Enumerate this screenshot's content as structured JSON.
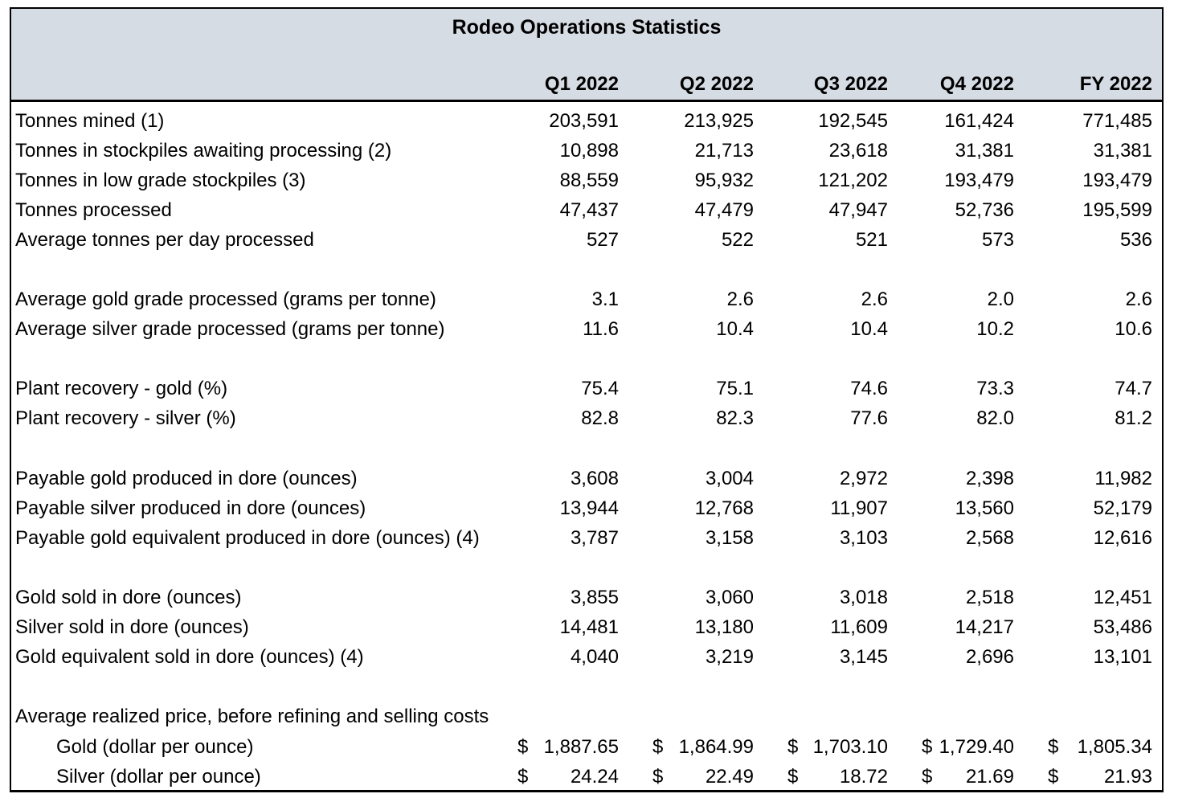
{
  "table": {
    "title": "Rodeo Operations Statistics",
    "header_bg": "#d6dce4",
    "border_color": "#000000",
    "currency_symbol": "$",
    "columns": [
      "Q1 2022",
      "Q2 2022",
      "Q3 2022",
      "Q4 2022",
      "FY 2022"
    ],
    "rows": [
      {
        "label": "Tonnes mined (1)",
        "values": [
          "203,591",
          "213,925",
          "192,545",
          "161,424",
          "771,485"
        ]
      },
      {
        "label": "Tonnes in stockpiles awaiting processing (2)",
        "values": [
          "10,898",
          "21,713",
          "23,618",
          "31,381",
          "31,381"
        ]
      },
      {
        "label": "Tonnes in low grade stockpiles (3)",
        "values": [
          "88,559",
          "95,932",
          "121,202",
          "193,479",
          "193,479"
        ]
      },
      {
        "label": "Tonnes processed",
        "values": [
          "47,437",
          "47,479",
          "47,947",
          "52,736",
          "195,599"
        ]
      },
      {
        "label": "Average tonnes per day processed",
        "values": [
          "527",
          "522",
          "521",
          "573",
          "536"
        ]
      },
      {
        "blank": true
      },
      {
        "label": "Average gold grade processed (grams per tonne)",
        "values": [
          "3.1",
          "2.6",
          "2.6",
          "2.0",
          "2.6"
        ]
      },
      {
        "label": "Average silver grade processed (grams per tonne)",
        "values": [
          "11.6",
          "10.4",
          "10.4",
          "10.2",
          "10.6"
        ]
      },
      {
        "blank": true
      },
      {
        "label": "Plant recovery - gold (%)",
        "values": [
          "75.4",
          "75.1",
          "74.6",
          "73.3",
          "74.7"
        ]
      },
      {
        "label": "Plant recovery - silver (%)",
        "values": [
          "82.8",
          "82.3",
          "77.6",
          "82.0",
          "81.2"
        ]
      },
      {
        "blank": true
      },
      {
        "label": "Payable gold produced in dore (ounces)",
        "values": [
          "3,608",
          "3,004",
          "2,972",
          "2,398",
          "11,982"
        ]
      },
      {
        "label": "Payable silver produced in dore (ounces)",
        "values": [
          "13,944",
          "12,768",
          "11,907",
          "13,560",
          "52,179"
        ]
      },
      {
        "label": "Payable gold equivalent produced in dore (ounces) (4)",
        "values": [
          "3,787",
          "3,158",
          "3,103",
          "2,568",
          "12,616"
        ]
      },
      {
        "blank": true
      },
      {
        "label": "Gold sold in dore (ounces)",
        "values": [
          "3,855",
          "3,060",
          "3,018",
          "2,518",
          "12,451"
        ]
      },
      {
        "label": "Silver sold in dore (ounces)",
        "values": [
          "14,481",
          "13,180",
          "11,609",
          "14,217",
          "53,486"
        ]
      },
      {
        "label": "Gold equivalent sold in dore (ounces) (4)",
        "values": [
          "4,040",
          "3,219",
          "3,145",
          "2,696",
          "13,101"
        ]
      },
      {
        "blank": true
      },
      {
        "label": "Average realized price, before refining and selling costs",
        "values": [
          "",
          "",
          "",
          "",
          ""
        ]
      },
      {
        "label": "Gold (dollar per ounce)",
        "indent": true,
        "currency": true,
        "values": [
          "1,887.65",
          "1,864.99",
          "1,703.10",
          "1,729.40",
          "1,805.34"
        ]
      },
      {
        "label": "Silver (dollar per ounce)",
        "indent": true,
        "currency": true,
        "values": [
          "24.24",
          "22.49",
          "18.72",
          "21.69",
          "21.93"
        ]
      }
    ]
  },
  "chart_data": {
    "type": "table",
    "title": "Rodeo Operations Statistics",
    "categories": [
      "Q1 2022",
      "Q2 2022",
      "Q3 2022",
      "Q4 2022",
      "FY 2022"
    ],
    "series": [
      {
        "name": "Tonnes mined (1)",
        "values": [
          203591,
          213925,
          192545,
          161424,
          771485
        ]
      },
      {
        "name": "Tonnes in stockpiles awaiting processing (2)",
        "values": [
          10898,
          21713,
          23618,
          31381,
          31381
        ]
      },
      {
        "name": "Tonnes in low grade stockpiles (3)",
        "values": [
          88559,
          95932,
          121202,
          193479,
          193479
        ]
      },
      {
        "name": "Tonnes processed",
        "values": [
          47437,
          47479,
          47947,
          52736,
          195599
        ]
      },
      {
        "name": "Average tonnes per day processed",
        "values": [
          527,
          522,
          521,
          573,
          536
        ]
      },
      {
        "name": "Average gold grade processed (grams per tonne)",
        "values": [
          3.1,
          2.6,
          2.6,
          2.0,
          2.6
        ]
      },
      {
        "name": "Average silver grade processed (grams per tonne)",
        "values": [
          11.6,
          10.4,
          10.4,
          10.2,
          10.6
        ]
      },
      {
        "name": "Plant recovery - gold (%)",
        "values": [
          75.4,
          75.1,
          74.6,
          73.3,
          74.7
        ]
      },
      {
        "name": "Plant recovery - silver (%)",
        "values": [
          82.8,
          82.3,
          77.6,
          82.0,
          81.2
        ]
      },
      {
        "name": "Payable gold produced in dore (ounces)",
        "values": [
          3608,
          3004,
          2972,
          2398,
          11982
        ]
      },
      {
        "name": "Payable silver produced in dore (ounces)",
        "values": [
          13944,
          12768,
          11907,
          13560,
          52179
        ]
      },
      {
        "name": "Payable gold equivalent produced in dore (ounces) (4)",
        "values": [
          3787,
          3158,
          3103,
          2568,
          12616
        ]
      },
      {
        "name": "Gold sold in dore (ounces)",
        "values": [
          3855,
          3060,
          3018,
          2518,
          12451
        ]
      },
      {
        "name": "Silver sold in dore (ounces)",
        "values": [
          14481,
          13180,
          11609,
          14217,
          53486
        ]
      },
      {
        "name": "Gold equivalent sold in dore (ounces) (4)",
        "values": [
          4040,
          3219,
          3145,
          2696,
          13101
        ]
      },
      {
        "name": "Average realized price - Gold (dollar per ounce)",
        "values": [
          1887.65,
          1864.99,
          1703.1,
          1729.4,
          1805.34
        ]
      },
      {
        "name": "Average realized price - Silver (dollar per ounce)",
        "values": [
          24.24,
          22.49,
          18.72,
          21.69,
          21.93
        ]
      }
    ]
  }
}
